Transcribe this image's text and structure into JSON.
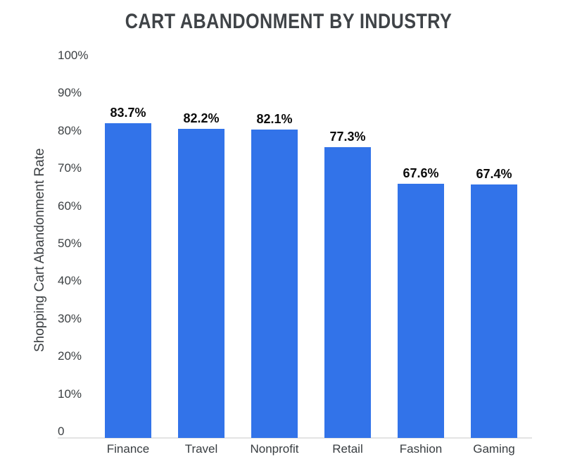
{
  "chart_data": {
    "type": "bar",
    "title": "CART ABANDONMENT BY INDUSTRY",
    "ylabel": "Shopping Cart Abandonment Rate",
    "xlabel": "",
    "categories": [
      "Finance",
      "Travel",
      "Nonprofit",
      "Retail",
      "Fashion",
      "Gaming"
    ],
    "values": [
      83.7,
      82.2,
      82.1,
      77.3,
      67.6,
      67.4
    ],
    "bar_labels": [
      "83.7%",
      "82.2%",
      "82.1%",
      "77.3%",
      "67.6%",
      "67.4%"
    ],
    "y_ticks": [
      {
        "value": 100,
        "label": "100%"
      },
      {
        "value": 90,
        "label": "90%"
      },
      {
        "value": 80,
        "label": "80%"
      },
      {
        "value": 70,
        "label": "70%"
      },
      {
        "value": 60,
        "label": "60%"
      },
      {
        "value": 50,
        "label": "50%"
      },
      {
        "value": 40,
        "label": "40%"
      },
      {
        "value": 30,
        "label": "30%"
      },
      {
        "value": 20,
        "label": "20%"
      },
      {
        "value": 10,
        "label": "10%"
      },
      {
        "value": 0,
        "label": "0"
      }
    ],
    "ylim": [
      0,
      100
    ],
    "grid": false,
    "legend": "none",
    "colors": {
      "bar": "#3273e9",
      "title_text": "#3f4347",
      "axis_text": "#3c4043",
      "category_text": "#383d41",
      "value_label_text": "#0b0b0b",
      "axis_line": "#e4e4e4",
      "background": "#ffffff"
    }
  }
}
